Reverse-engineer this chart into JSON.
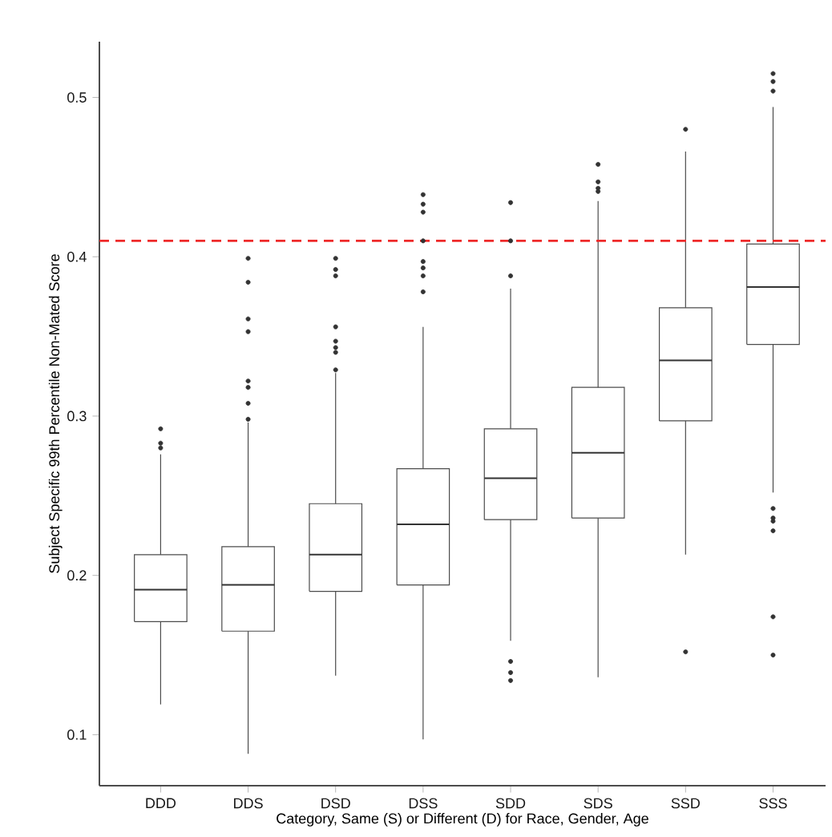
{
  "chart_data": {
    "type": "box",
    "xlabel": "Category, Same (S) or Different (D) for Race, Gender, Age",
    "ylabel": "Subject Specific 99th Percentile Non-Mated Score",
    "categories": [
      "DDD",
      "DDS",
      "DSD",
      "DSS",
      "SDD",
      "SDS",
      "SSD",
      "SSS"
    ],
    "boxes": [
      {
        "low": 0.119,
        "q1": 0.171,
        "median": 0.191,
        "q3": 0.213,
        "high": 0.276,
        "outliers": [
          0.292,
          0.283,
          0.28
        ]
      },
      {
        "low": 0.088,
        "q1": 0.165,
        "median": 0.194,
        "q3": 0.218,
        "high": 0.296,
        "outliers": [
          0.399,
          0.384,
          0.361,
          0.353,
          0.322,
          0.318,
          0.308,
          0.298
        ]
      },
      {
        "low": 0.137,
        "q1": 0.19,
        "median": 0.213,
        "q3": 0.245,
        "high": 0.327,
        "outliers": [
          0.399,
          0.392,
          0.388,
          0.356,
          0.347,
          0.343,
          0.34,
          0.329
        ]
      },
      {
        "low": 0.097,
        "q1": 0.194,
        "median": 0.232,
        "q3": 0.267,
        "high": 0.356,
        "outliers": [
          0.439,
          0.433,
          0.428,
          0.41,
          0.397,
          0.393,
          0.388,
          0.378
        ]
      },
      {
        "low": 0.159,
        "q1": 0.235,
        "median": 0.261,
        "q3": 0.292,
        "high": 0.38,
        "outliers": [
          0.434,
          0.41,
          0.388,
          0.146,
          0.139,
          0.134
        ]
      },
      {
        "low": 0.136,
        "q1": 0.236,
        "median": 0.277,
        "q3": 0.318,
        "high": 0.435,
        "outliers": [
          0.458,
          0.447,
          0.443,
          0.441
        ]
      },
      {
        "low": 0.213,
        "q1": 0.297,
        "median": 0.335,
        "q3": 0.368,
        "high": 0.466,
        "outliers": [
          0.48,
          0.152
        ]
      },
      {
        "low": 0.252,
        "q1": 0.345,
        "median": 0.381,
        "q3": 0.408,
        "high": 0.494,
        "outliers": [
          0.515,
          0.51,
          0.504,
          0.242,
          0.236,
          0.234,
          0.228,
          0.174,
          0.15
        ]
      }
    ],
    "ylim": [
      0.068,
      0.535
    ],
    "yticks": [
      0.1,
      0.2,
      0.3,
      0.4,
      0.5
    ],
    "ref_lines": [
      {
        "axis": "y",
        "value": 0.41,
        "color": "#ee2a2a",
        "line_style": "dashed"
      }
    ],
    "grid": false
  }
}
